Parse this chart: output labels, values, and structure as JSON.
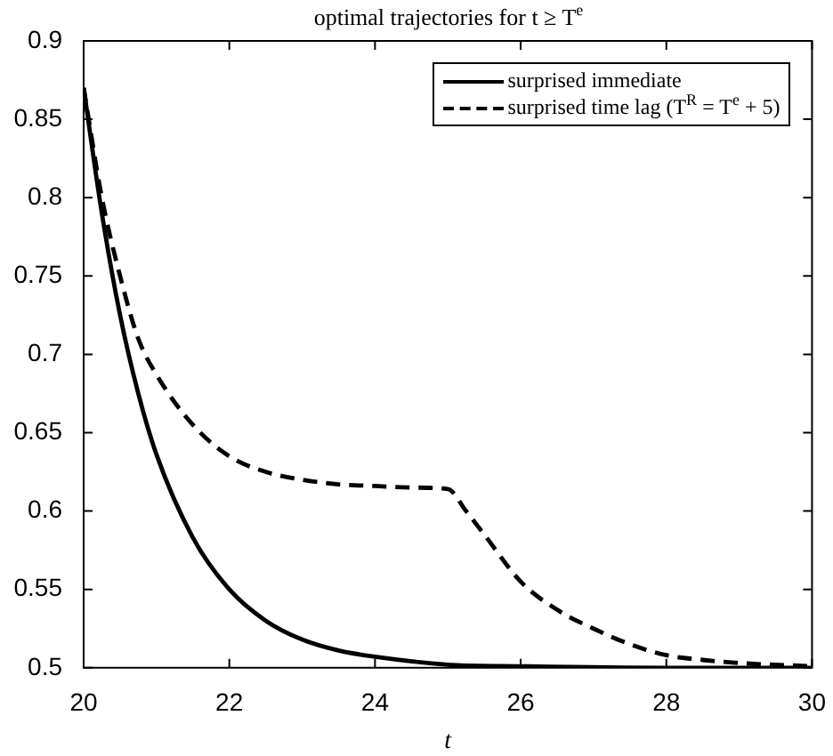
{
  "chart_data": {
    "type": "line",
    "title": "optimal trajectories for t ≥ T$^{e}$",
    "xlabel": "t",
    "xlim": [
      20,
      30
    ],
    "xticks": [
      20,
      22,
      24,
      26,
      28,
      30
    ],
    "ylim": [
      0.5,
      0.9
    ],
    "yticks": [
      0.5,
      0.55,
      0.6,
      0.65,
      0.7,
      0.75,
      0.8,
      0.85,
      0.9
    ],
    "grid": false,
    "legend": "top right",
    "marker": "none",
    "series": [
      {
        "name": "surprised immediate",
        "color": "#000000",
        "line_style": "solid",
        "x": [
          20,
          20.25,
          20.5,
          20.75,
          21,
          21.5,
          22,
          22.5,
          23,
          23.5,
          24,
          25,
          26,
          28,
          30
        ],
        "values": [
          0.87,
          0.79,
          0.725,
          0.675,
          0.636,
          0.583,
          0.55,
          0.53,
          0.518,
          0.511,
          0.507,
          0.502,
          0.501,
          0.5,
          0.5
        ]
      },
      {
        "name": "surprised time lag (T$^{R}$ = T$^{e}$ + 5)",
        "color": "#000000",
        "line_style": "dashed",
        "x": [
          20,
          20.25,
          20.5,
          20.75,
          21,
          21.5,
          22,
          22.5,
          23,
          23.5,
          24,
          24.5,
          25,
          25.25,
          25.5,
          26,
          26.5,
          27,
          27.5,
          28,
          28.5,
          29,
          30
        ],
        "values": [
          0.87,
          0.8,
          0.75,
          0.71,
          0.687,
          0.655,
          0.635,
          0.625,
          0.62,
          0.617,
          0.616,
          0.615,
          0.614,
          0.6,
          0.585,
          0.555,
          0.537,
          0.525,
          0.515,
          0.508,
          0.505,
          0.503,
          0.501
        ]
      }
    ]
  }
}
